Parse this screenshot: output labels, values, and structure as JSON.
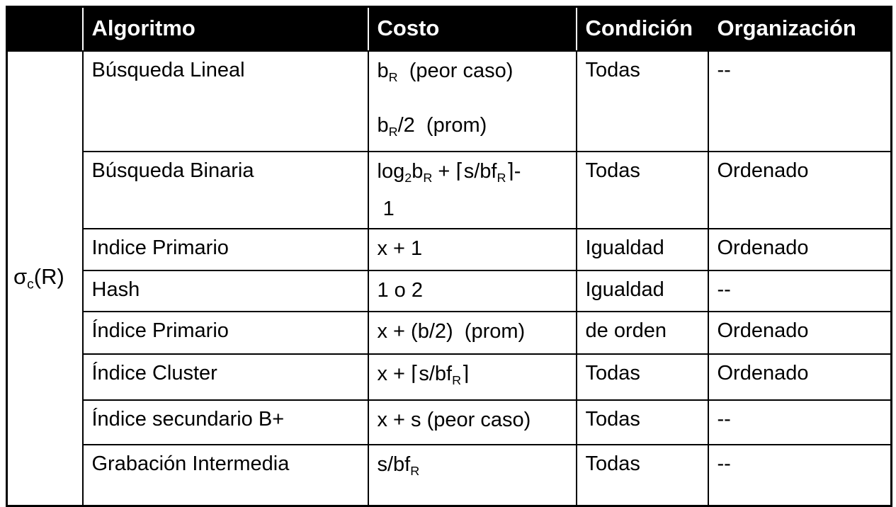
{
  "table": {
    "row_label": [
      [
        "σ"
      ],
      [
        "c",
        "s"
      ],
      [
        "(R)"
      ]
    ],
    "headers": [
      "Algoritmo",
      "Costo",
      "Condición",
      "Organización"
    ],
    "colors": {
      "header_bg": "#000000",
      "header_text": "#ffffff",
      "body_bg": "#ffffff",
      "body_text": "#000000",
      "border": "#000000"
    },
    "rows": [
      {
        "algoritmo": "Búsqueda Lineal",
        "costo": [
          [
            [
              [
                "b"
              ],
              [
                "R",
                "s"
              ],
              [
                "  (peor caso)"
              ]
            ]
          ],
          [
            [
              [
                "b"
              ],
              [
                "R",
                "s"
              ],
              [
                "/2  (prom)"
              ]
            ]
          ]
        ],
        "condicion": "Todas",
        "organizacion": "--"
      },
      {
        "algoritmo": "Búsqueda Binaria",
        "costo": [
          [
            [
              [
                "log"
              ],
              [
                "2",
                "s"
              ],
              [
                "b"
              ],
              [
                "R",
                "s"
              ],
              [
                " + ⌈s/bf"
              ],
              [
                "R",
                "s"
              ],
              [
                "⌉-"
              ]
            ],
            [
              [
                " 1"
              ]
            ]
          ]
        ],
        "condicion": "Todas",
        "organizacion": "Ordenado"
      },
      {
        "algoritmo": "Indice Primario",
        "costo": [
          [
            [
              [
                "x + 1"
              ]
            ]
          ]
        ],
        "condicion": "Igualdad",
        "organizacion": "Ordenado"
      },
      {
        "algoritmo": "Hash",
        "costo": [
          [
            [
              [
                "1 o 2"
              ]
            ]
          ]
        ],
        "condicion": "Igualdad",
        "organizacion": "--"
      },
      {
        "algoritmo": "Índice Primario",
        "costo": [
          [
            [
              [
                "x + (b/2)  (prom)"
              ]
            ]
          ]
        ],
        "condicion": "de orden",
        "organizacion": "Ordenado"
      },
      {
        "algoritmo": "Índice Cluster",
        "costo": [
          [
            [
              [
                "x + ⌈s/bf"
              ],
              [
                "R",
                "s"
              ],
              [
                "⌉"
              ]
            ]
          ]
        ],
        "condicion": "Todas",
        "organizacion": "Ordenado"
      },
      {
        "algoritmo": "Índice secundario B+",
        "costo": [
          [
            [
              [
                "x + s (peor caso)"
              ]
            ]
          ]
        ],
        "condicion": "Todas",
        "organizacion": "--"
      },
      {
        "algoritmo": "Grabación Intermedia",
        "costo": [
          [
            [
              [
                "s/bf"
              ],
              [
                "R",
                "s"
              ]
            ]
          ]
        ],
        "condicion": "Todas",
        "organizacion": "--"
      }
    ]
  }
}
